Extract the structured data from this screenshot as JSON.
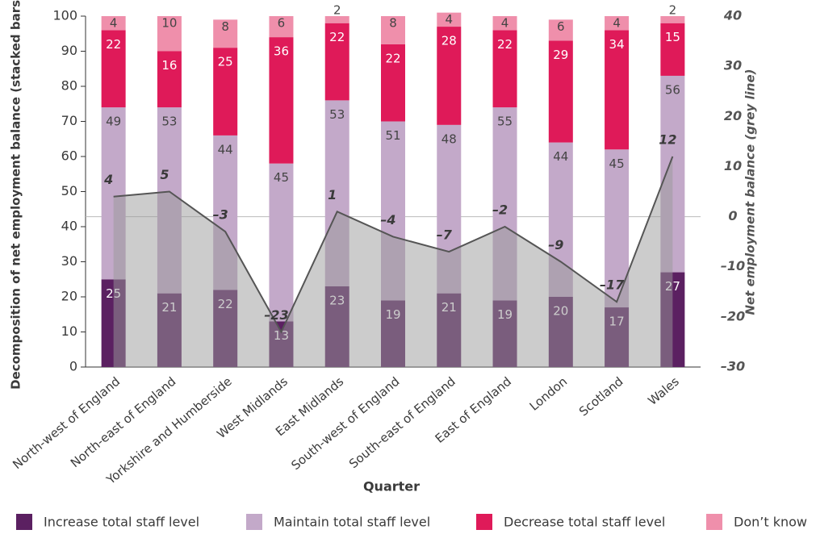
{
  "chart_data": {
    "type": "bar",
    "stacked": true,
    "x_label": "Quarter",
    "y_label": "Decomposition of net employment balance (stacked bars)",
    "y2_label": "Net employment balance (grey line)",
    "categories": [
      "North-west of England",
      "North-east of England",
      "Yorkshire and Humberside",
      "West Midlands",
      "East Midlands",
      "South-west of England",
      "South-east of England",
      "East of England",
      "London",
      "Scotland",
      "Wales"
    ],
    "series": [
      {
        "name": "Increase total staff level",
        "color": "#5b2061",
        "values": [
          25,
          21,
          22,
          13,
          23,
          19,
          21,
          19,
          20,
          17,
          27
        ]
      },
      {
        "name": "Maintain total staff level",
        "color": "#c3a9c9",
        "values": [
          49,
          53,
          44,
          45,
          53,
          51,
          48,
          55,
          44,
          45,
          56
        ]
      },
      {
        "name": "Decrease total staff level",
        "color": "#df1a59",
        "values": [
          22,
          16,
          25,
          36,
          22,
          22,
          28,
          22,
          29,
          34,
          15
        ]
      },
      {
        "name": "Don’t know",
        "color": "#ef8fab",
        "values": [
          4,
          10,
          8,
          6,
          2,
          8,
          4,
          4,
          6,
          4,
          2
        ]
      }
    ],
    "line": {
      "type": "line",
      "axis": "y2",
      "color": "#555555",
      "fill": "#9a9a9a",
      "values": [
        4,
        5,
        -3,
        -23,
        1,
        -4,
        -7,
        -2,
        -9,
        -17,
        12
      ],
      "value_labels": [
        "4",
        "5",
        "–3",
        "–23",
        "1",
        "–4",
        "–7",
        "–2",
        "–9",
        "–17",
        "12"
      ]
    },
    "ylim": [
      0,
      100
    ],
    "yticks": [
      0,
      10,
      20,
      30,
      40,
      50,
      60,
      70,
      80,
      90,
      100
    ],
    "y2lim": [
      -30,
      40
    ],
    "y2ticks": [
      {
        "value": -30,
        "label": "–30"
      },
      {
        "value": -20,
        "label": "–20"
      },
      {
        "value": -10,
        "label": "–10"
      },
      0,
      10,
      20,
      30,
      40
    ],
    "legend": "bottom"
  }
}
